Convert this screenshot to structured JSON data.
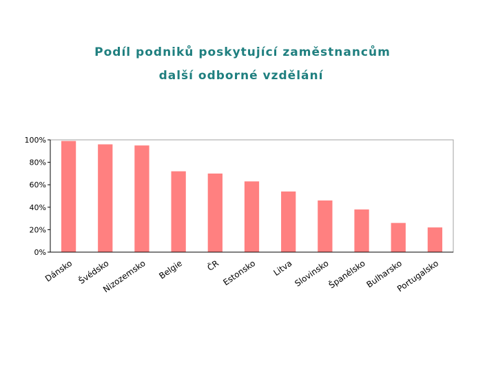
{
  "header": {
    "title_line1": "Podíl podniků poskytující zaměstnancům",
    "title_line2": "další odborné vzdělání"
  },
  "colors": {
    "bar": "#ff8080",
    "plot_border": "#a0a0a0",
    "title": "#1f7f7f"
  },
  "chart_data": {
    "type": "bar",
    "title": "Podíl podniků poskytující zaměstnancům další odborné vzdělání",
    "categories": [
      "Dánsko",
      "Švédsko",
      "Nizozemsko",
      "Belgie",
      "ČR",
      "Estonsko",
      "Litva",
      "Slovinsko",
      "Španělsko",
      "Bulharsko",
      "Portugalsko"
    ],
    "values": [
      99,
      96,
      95,
      72,
      70,
      63,
      54,
      46,
      38,
      26,
      22
    ],
    "ylim": [
      0,
      100
    ],
    "yticks": [
      "0%",
      "20%",
      "40%",
      "60%",
      "80%",
      "100%"
    ],
    "grid": false,
    "legend": "none"
  }
}
